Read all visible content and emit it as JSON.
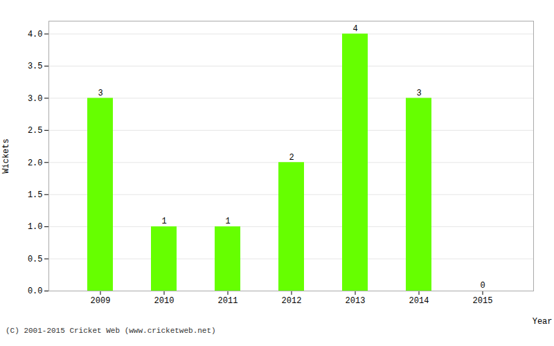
{
  "chart_data": {
    "type": "bar",
    "categories": [
      "2009",
      "2010",
      "2011",
      "2012",
      "2013",
      "2014",
      "2015"
    ],
    "values": [
      3,
      1,
      1,
      2,
      4,
      3,
      0
    ],
    "color": "#66ff00",
    "xlabel": "Year",
    "ylabel": "Wickets",
    "ylim": [
      0,
      4.2
    ],
    "yticks": [
      {
        "value": 0.0,
        "label": "0.0"
      },
      0.5,
      {
        "value": 1.0,
        "label": "1.0"
      },
      1.5,
      {
        "value": 2.0,
        "label": "2.0"
      },
      2.5,
      {
        "value": 3.0,
        "label": "3.0"
      },
      3.5,
      {
        "value": 4.0,
        "label": "4.0"
      }
    ],
    "grid": true,
    "data_labels": true,
    "caption": "(C) 2001-2015 Cricket Web (www.cricketweb.net)"
  }
}
